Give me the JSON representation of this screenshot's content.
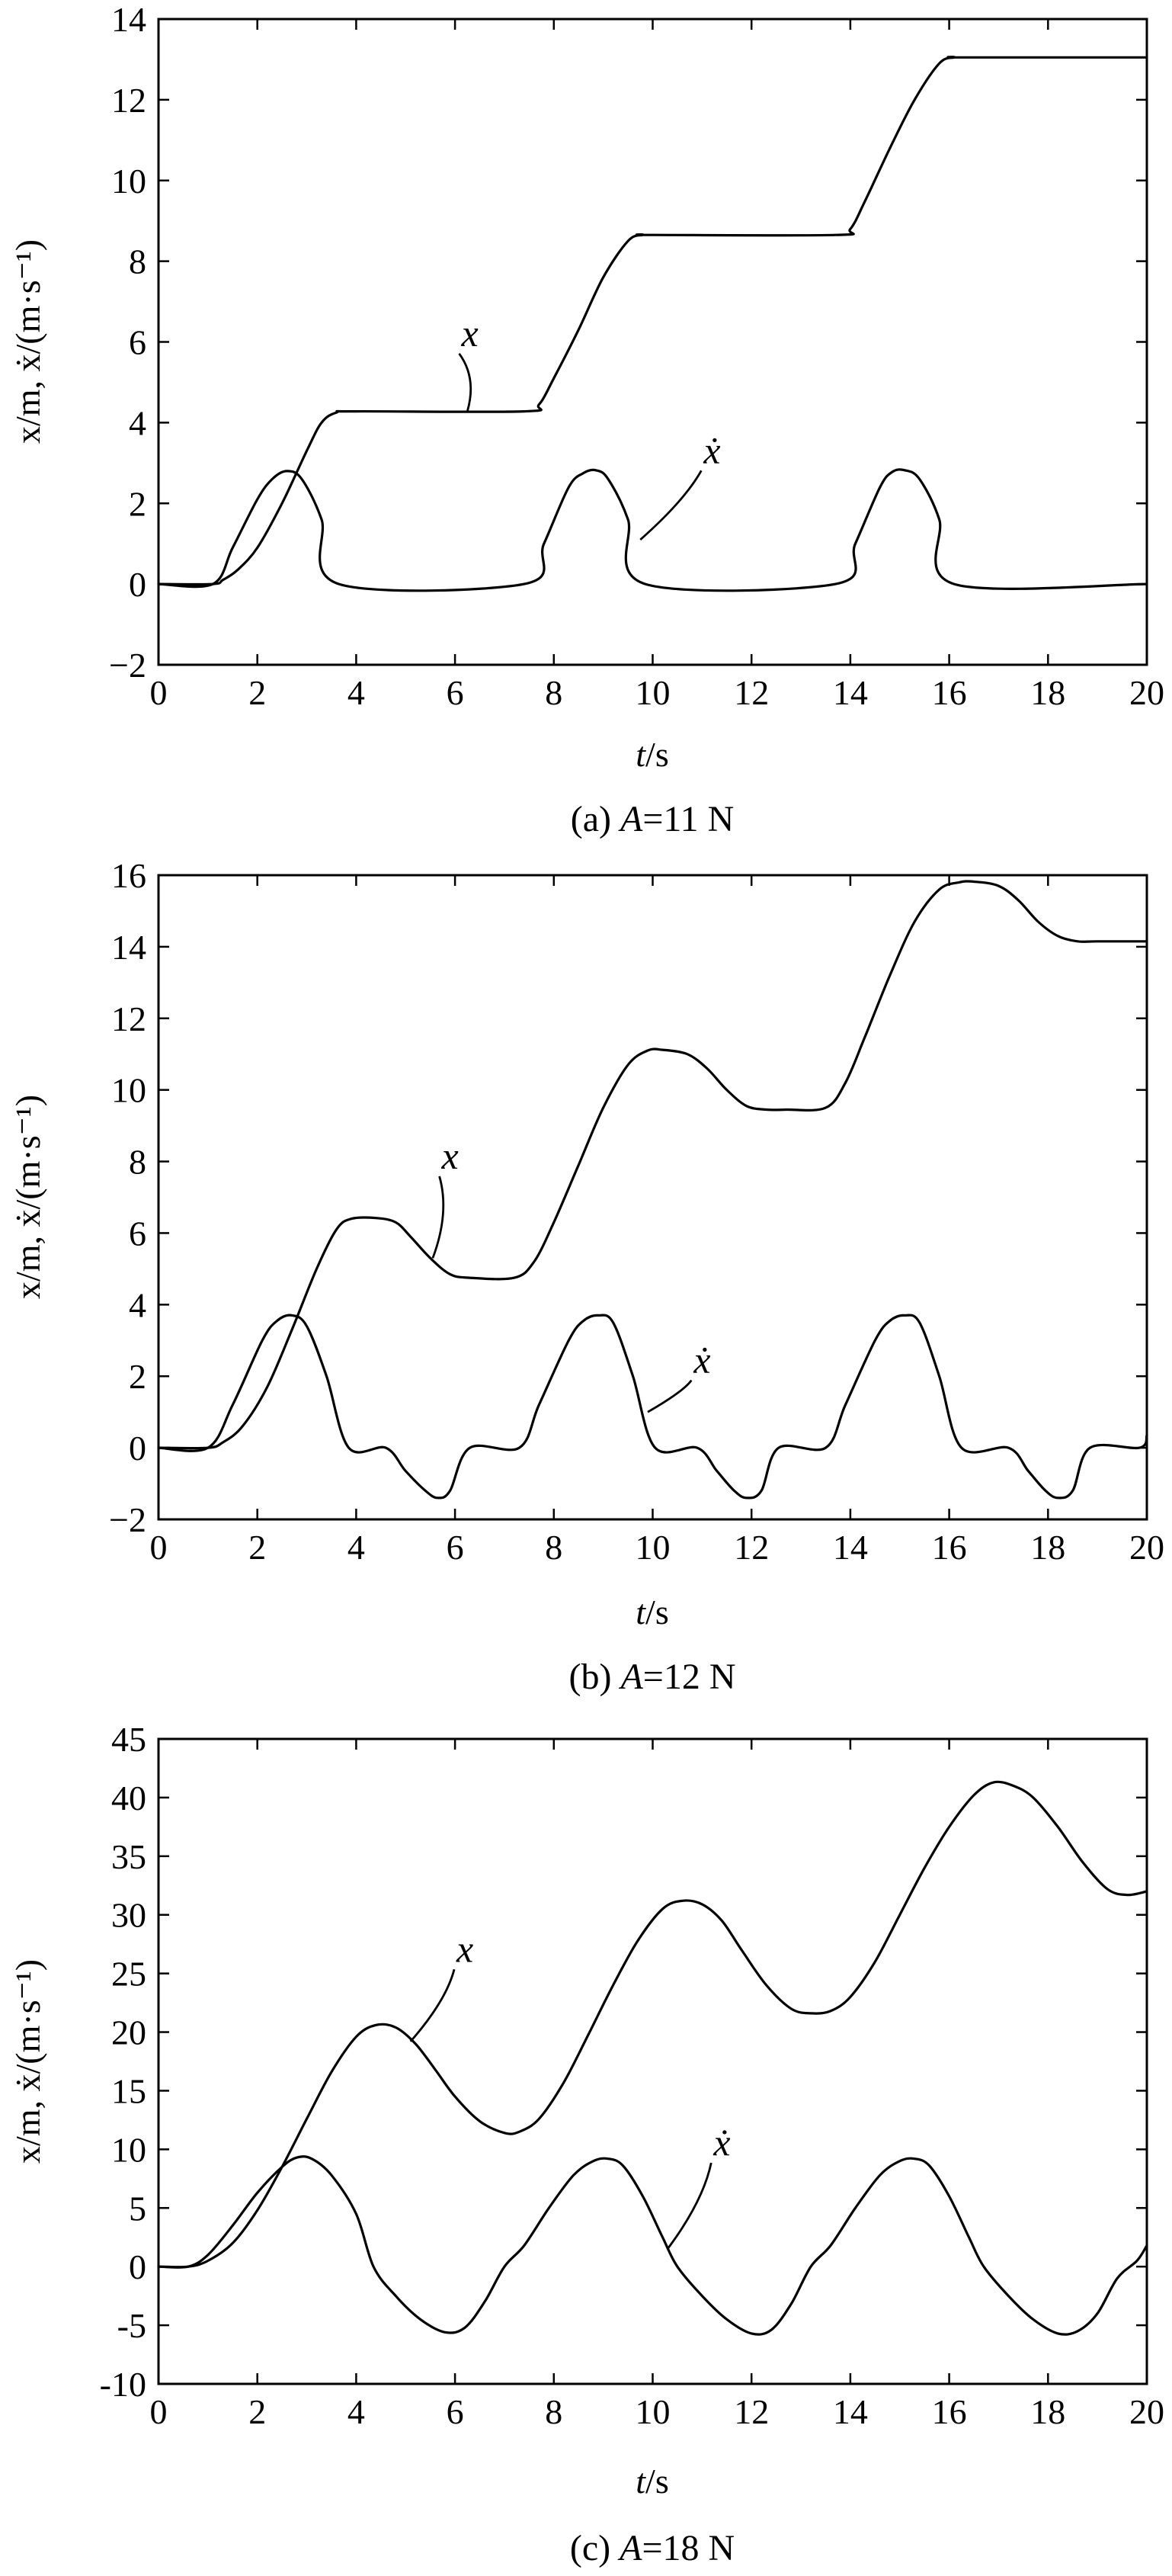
{
  "chart_data": [
    {
      "type": "line",
      "caption": "(a) A=11 N",
      "caption_prefix": "(a) ",
      "caption_var": "A",
      "caption_suffix": "=11 N",
      "xlabel_var": "t",
      "xlabel_unit": "/s",
      "ylabel": "x/m, ẋ/(m·s⁻¹)",
      "xlim": [
        0,
        20
      ],
      "ylim": [
        -2,
        14
      ],
      "xticks": [
        0,
        2,
        4,
        6,
        8,
        10,
        12,
        14,
        16,
        18,
        20
      ],
      "yticks": [
        -2,
        0,
        2,
        4,
        6,
        8,
        10,
        12,
        14
      ],
      "xtick_labels": [
        "0",
        "2",
        "4",
        "6",
        "8",
        "10",
        "12",
        "14",
        "16",
        "18",
        "20"
      ],
      "ytick_labels": [
        "−2",
        "0",
        "2",
        "4",
        "6",
        "8",
        "10",
        "12",
        "14"
      ],
      "grid": false,
      "series": [
        {
          "name": "x",
          "x": [
            0,
            1.1,
            1.3,
            1.6,
            2.0,
            2.5,
            3.0,
            3.3,
            3.6,
            4.0,
            7.4,
            7.7,
            8.0,
            8.5,
            9.0,
            9.5,
            9.8,
            10.0,
            13.7,
            14.0,
            14.3,
            14.8,
            15.3,
            15.8,
            16.1,
            16.3,
            20.0
          ],
          "y": [
            0,
            0,
            0.1,
            0.35,
            0.9,
            2.0,
            3.3,
            4.0,
            4.25,
            4.28,
            4.28,
            4.45,
            5.1,
            6.3,
            7.6,
            8.5,
            8.65,
            8.65,
            8.65,
            8.8,
            9.5,
            10.8,
            12.0,
            12.9,
            13.05,
            13.05,
            13.05
          ]
        },
        {
          "name": "ẋ",
          "x": [
            0,
            1.1,
            1.5,
            2.0,
            2.3,
            2.6,
            2.9,
            3.3,
            3.65,
            7.4,
            7.8,
            8.3,
            8.6,
            8.85,
            9.1,
            9.5,
            9.85,
            13.7,
            14.1,
            14.6,
            14.85,
            15.1,
            15.4,
            15.8,
            16.1,
            20.0
          ],
          "y": [
            0,
            0,
            0.9,
            2.1,
            2.6,
            2.8,
            2.6,
            1.6,
            0,
            0,
            1.0,
            2.4,
            2.75,
            2.82,
            2.6,
            1.6,
            0,
            0,
            1.0,
            2.4,
            2.78,
            2.82,
            2.6,
            1.6,
            0,
            0
          ]
        }
      ],
      "labels": [
        {
          "text": "x",
          "at": [
            6.3,
            5.9
          ],
          "point": [
            6.25,
            4.28
          ]
        },
        {
          "text": "ẋ",
          "at": [
            11.2,
            3.0
          ],
          "point": [
            9.75,
            1.1
          ]
        }
      ]
    },
    {
      "type": "line",
      "caption": "(b) A=12 N",
      "caption_prefix": "(b) ",
      "caption_var": "A",
      "caption_suffix": "=12 N",
      "xlabel_var": "t",
      "xlabel_unit": "/s",
      "ylabel": "x/m, ẋ/(m·s⁻¹)",
      "xlim": [
        0,
        20
      ],
      "ylim": [
        -2,
        16
      ],
      "xticks": [
        0,
        2,
        4,
        6,
        8,
        10,
        12,
        14,
        16,
        18,
        20
      ],
      "yticks": [
        -2,
        0,
        2,
        4,
        6,
        8,
        10,
        12,
        14,
        16
      ],
      "xtick_labels": [
        "0",
        "2",
        "4",
        "6",
        "8",
        "10",
        "12",
        "14",
        "16",
        "18",
        "20"
      ],
      "ytick_labels": [
        "−2",
        "0",
        "2",
        "4",
        "6",
        "8",
        "10",
        "12",
        "14",
        "16"
      ],
      "grid": false,
      "series": [
        {
          "name": "x",
          "x": [
            0,
            1.0,
            1.3,
            1.7,
            2.2,
            2.7,
            3.2,
            3.6,
            3.9,
            4.4,
            4.8,
            5.1,
            5.5,
            5.9,
            6.3,
            7.2,
            7.6,
            8.0,
            8.5,
            9.0,
            9.5,
            9.9,
            10.2,
            10.7,
            11.1,
            11.5,
            11.9,
            12.3,
            12.7,
            13.5,
            13.9,
            14.3,
            14.8,
            15.3,
            15.8,
            16.2,
            16.5,
            17.0,
            17.4,
            17.8,
            18.2,
            18.6,
            19.0,
            20.0
          ],
          "y": [
            0,
            0,
            0.15,
            0.6,
            1.7,
            3.3,
            5.0,
            6.1,
            6.4,
            6.42,
            6.3,
            5.9,
            5.3,
            4.85,
            4.75,
            4.75,
            5.2,
            6.3,
            7.9,
            9.5,
            10.7,
            11.1,
            11.12,
            11.0,
            10.6,
            10.0,
            9.55,
            9.45,
            9.45,
            9.5,
            10.2,
            11.5,
            13.2,
            14.7,
            15.6,
            15.8,
            15.82,
            15.7,
            15.3,
            14.7,
            14.3,
            14.15,
            14.15,
            14.15
          ]
        },
        {
          "name": "ẋ",
          "x": [
            0,
            1.0,
            1.5,
            2.1,
            2.4,
            2.7,
            3.0,
            3.4,
            3.85,
            4.6,
            5.0,
            5.4,
            5.65,
            5.9,
            6.3,
            7.3,
            7.7,
            8.3,
            8.6,
            8.9,
            9.2,
            9.6,
            10.05,
            10.9,
            11.3,
            11.65,
            11.9,
            12.2,
            12.55,
            13.5,
            13.9,
            14.5,
            14.8,
            15.1,
            15.4,
            15.8,
            16.25,
            17.2,
            17.6,
            17.95,
            18.2,
            18.5,
            18.85,
            19.85,
            20.0
          ],
          "y": [
            0,
            0,
            1.2,
            3.0,
            3.55,
            3.7,
            3.4,
            2.0,
            0,
            0,
            -0.65,
            -1.2,
            -1.4,
            -1.2,
            0,
            0,
            1.2,
            3.0,
            3.55,
            3.7,
            3.5,
            2.0,
            0,
            0,
            -0.65,
            -1.2,
            -1.4,
            -1.2,
            0,
            0,
            1.2,
            3.0,
            3.55,
            3.7,
            3.5,
            2.0,
            0,
            0,
            -0.65,
            -1.2,
            -1.4,
            -1.2,
            0,
            0,
            0.35
          ]
        }
      ],
      "labels": [
        {
          "text": "x",
          "at": [
            5.9,
            7.8
          ],
          "point": [
            5.55,
            5.3
          ]
        },
        {
          "text": "ẋ",
          "at": [
            11.0,
            2.1
          ],
          "point": [
            9.9,
            1.0
          ]
        }
      ]
    },
    {
      "type": "line",
      "caption": "(c) A=18 N",
      "caption_prefix": "(c) ",
      "caption_var": "A",
      "caption_suffix": "=18 N",
      "xlabel_var": "t",
      "xlabel_unit": "/s",
      "ylabel": "x/m, ẋ/(m·s⁻¹)",
      "xlim": [
        0,
        20
      ],
      "ylim": [
        -10,
        45
      ],
      "xticks": [
        0,
        2,
        4,
        6,
        8,
        10,
        12,
        14,
        16,
        18,
        20
      ],
      "yticks": [
        -10,
        -5,
        0,
        5,
        10,
        15,
        20,
        25,
        30,
        35,
        40,
        45
      ],
      "xtick_labels": [
        "0",
        "2",
        "4",
        "6",
        "8",
        "10",
        "12",
        "14",
        "16",
        "18",
        "20"
      ],
      "ytick_labels": [
        "-10",
        "-5",
        "0",
        "5",
        "10",
        "15",
        "20",
        "25",
        "30",
        "35",
        "40",
        "45"
      ],
      "grid": false,
      "series": [
        {
          "name": "x",
          "x": [
            0,
            0.6,
            1.0,
            1.5,
            2.0,
            2.5,
            3.0,
            3.5,
            4.0,
            4.4,
            4.8,
            5.2,
            5.6,
            6.0,
            6.5,
            7.0,
            7.3,
            7.7,
            8.2,
            8.7,
            9.2,
            9.7,
            10.2,
            10.6,
            11.0,
            11.4,
            11.8,
            12.3,
            12.8,
            13.2,
            13.6,
            14.0,
            14.5,
            15.0,
            15.5,
            16.0,
            16.5,
            16.9,
            17.3,
            17.7,
            18.2,
            18.7,
            19.2,
            19.6,
            20.0
          ],
          "y": [
            0,
            0,
            0.5,
            2.0,
            4.8,
            8.5,
            12.6,
            16.6,
            19.6,
            20.6,
            20.4,
            19.0,
            16.8,
            14.5,
            12.4,
            11.4,
            11.5,
            12.6,
            15.7,
            19.8,
            24.0,
            27.8,
            30.5,
            31.2,
            30.9,
            29.5,
            27.0,
            24.0,
            22.0,
            21.6,
            21.8,
            23.0,
            26.0,
            30.0,
            34.0,
            37.5,
            40.2,
            41.3,
            41.0,
            40.0,
            37.5,
            34.5,
            32.2,
            31.7,
            32.0
          ]
        },
        {
          "name": "ẋ",
          "x": [
            0,
            0.6,
            1.0,
            1.5,
            2.0,
            2.5,
            2.8,
            3.1,
            3.5,
            4.0,
            4.35,
            4.8,
            5.3,
            5.8,
            6.2,
            6.6,
            7.0,
            7.4,
            7.9,
            8.4,
            8.8,
            9.1,
            9.4,
            9.8,
            10.2,
            10.5,
            11.0,
            11.5,
            12.0,
            12.4,
            12.8,
            13.2,
            13.6,
            14.1,
            14.6,
            15.0,
            15.3,
            15.6,
            16.0,
            16.4,
            16.7,
            17.2,
            17.7,
            18.2,
            18.6,
            19.0,
            19.4,
            19.8,
            20.0
          ],
          "y": [
            0,
            0,
            1.0,
            3.5,
            6.3,
            8.5,
            9.3,
            9.2,
            7.8,
            4.5,
            0,
            -2.5,
            -4.5,
            -5.6,
            -5.2,
            -3.0,
            0,
            1.8,
            5.0,
            7.8,
            9.0,
            9.2,
            8.6,
            6.0,
            2.5,
            0,
            -2.5,
            -4.5,
            -5.7,
            -5.4,
            -3.2,
            0,
            1.8,
            5.0,
            7.8,
            9.0,
            9.2,
            8.6,
            6.0,
            2.5,
            0,
            -2.5,
            -4.5,
            -5.7,
            -5.5,
            -4.0,
            -1.0,
            0.5,
            1.8
          ]
        }
      ],
      "labels": [
        {
          "text": "x",
          "at": [
            6.2,
            26.0
          ],
          "point": [
            5.1,
            19.2
          ]
        },
        {
          "text": "ẋ",
          "at": [
            11.4,
            9.5
          ],
          "point": [
            10.3,
            1.5
          ]
        }
      ]
    }
  ]
}
